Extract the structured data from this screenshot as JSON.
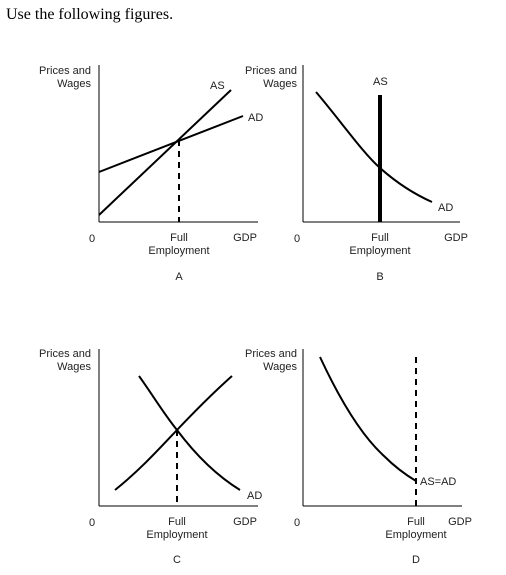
{
  "heading": "Use the following figures.",
  "panels": [
    {
      "id": "A",
      "y_label_line1": "Prices and",
      "y_label_line2": "Wages",
      "origin": "0",
      "x_label": "GDP",
      "tick_line1": "Full",
      "tick_line2": "Employment",
      "panel_label": "A",
      "curve_labels": [
        "AS",
        "AD"
      ]
    },
    {
      "id": "B",
      "y_label_line1": "Prices and",
      "y_label_line2": "Wages",
      "origin": "0",
      "x_label": "GDP",
      "tick_line1": "Full",
      "tick_line2": "Employment",
      "panel_label": "B",
      "curve_labels": [
        "AS",
        "AD"
      ]
    },
    {
      "id": "C",
      "y_label_line1": "Prices and",
      "y_label_line2": "Wages",
      "origin": "0",
      "x_label": "GDP",
      "tick_line1": "Full",
      "tick_line2": "Employment",
      "panel_label": "C",
      "curve_labels": [
        "AD"
      ]
    },
    {
      "id": "D",
      "y_label_line1": "Prices and",
      "y_label_line2": "Wages",
      "origin": "0",
      "x_label": "GDP",
      "tick_line1": "Full",
      "tick_line2": "Employment",
      "panel_label": "D",
      "curve_labels": [
        "AS=AD"
      ]
    }
  ]
}
